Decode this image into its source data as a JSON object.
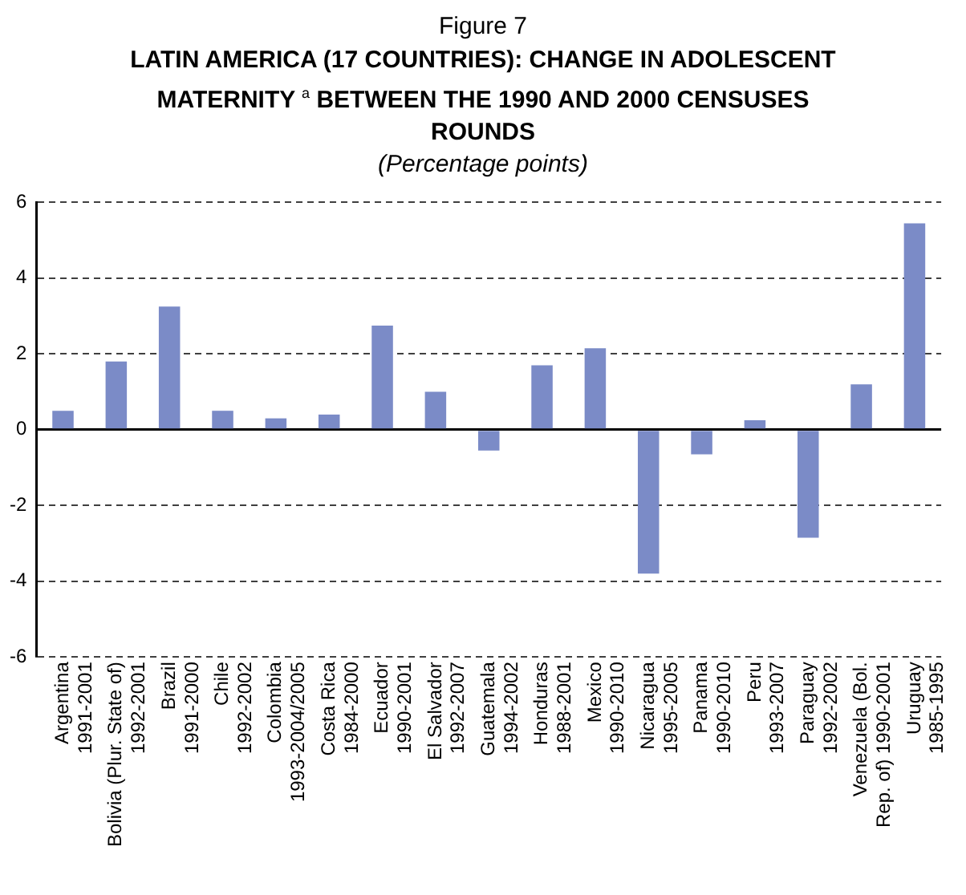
{
  "chart_data": {
    "type": "bar",
    "annotations": [
      "Figure 7"
    ],
    "title": "LATIN AMERICA (17 COUNTRIES): CHANGE IN ADOLESCENT MATERNITY $^{a}$ BETWEEN THE 1990 AND 2000 CENSUSES ROUNDS",
    "subtitle": "(Percentage points)",
    "categories": [
      "Argentina\n1991-2001",
      "Bolivia (Plur. State of)\n1992-2001",
      "Brazil\n1991-2000",
      "Chile\n1992-2002",
      "Colombia\n1993-2004/2005",
      "Costa Rica\n1984-2000",
      "Ecuador\n1990-2001",
      "El Salvador\n1992-2007",
      "Guatemala\n1994-2002",
      "Honduras\n1988-2001",
      "Mexico\n1990-2010",
      "Nicaragua\n1995-2005",
      "Panama\n1990-2010",
      "Peru\n1993-2007",
      "Paraguay\n1992-2002",
      "Venezuela (Bol.\nRep. of) 1990-2001",
      "Uruguay\n1985-1995"
    ],
    "values": [
      0.5,
      1.8,
      3.25,
      0.5,
      0.3,
      0.4,
      2.75,
      1.0,
      -0.55,
      1.7,
      2.15,
      -3.8,
      -0.65,
      0.25,
      -2.85,
      1.2,
      5.45
    ],
    "color": "#7b8bc7",
    "ylim": [
      -6,
      6
    ],
    "yticks": [
      -6,
      -4,
      -2,
      0,
      2,
      4,
      6
    ],
    "grid": "y",
    "legend": false
  }
}
